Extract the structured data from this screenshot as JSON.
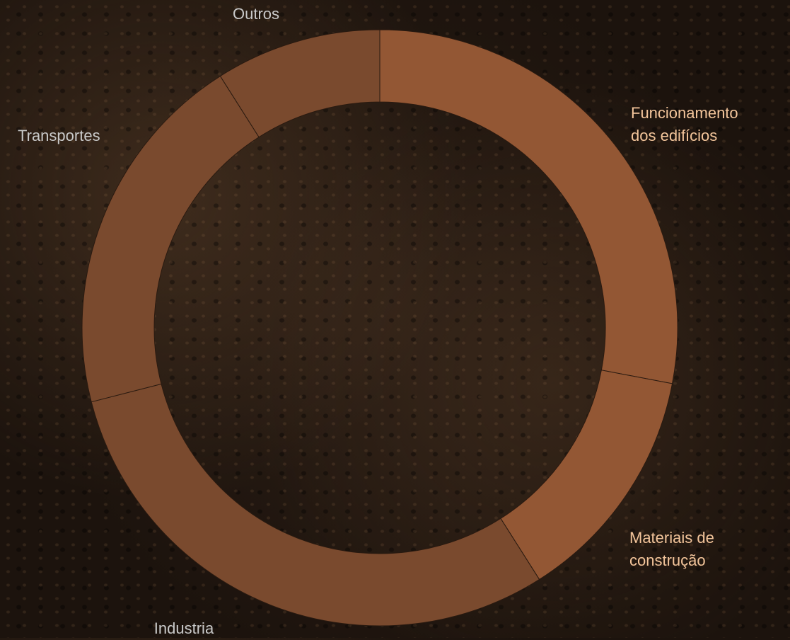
{
  "chart_data": {
    "type": "donut",
    "categories": [
      "Funcionamento dos edifícios",
      "Materiais de construção",
      "Industria",
      "Transportes",
      "Outros"
    ],
    "values": [
      28,
      13,
      30,
      20,
      9
    ],
    "colors": [
      "#935734",
      "#935734",
      "#7a4a2e",
      "#7a4a2e",
      "#7a4a2e"
    ],
    "label_colors": [
      "#f3c59b",
      "#f3c59b",
      "#c9c9c9",
      "#c9c9c9",
      "#c9c9c9"
    ]
  }
}
